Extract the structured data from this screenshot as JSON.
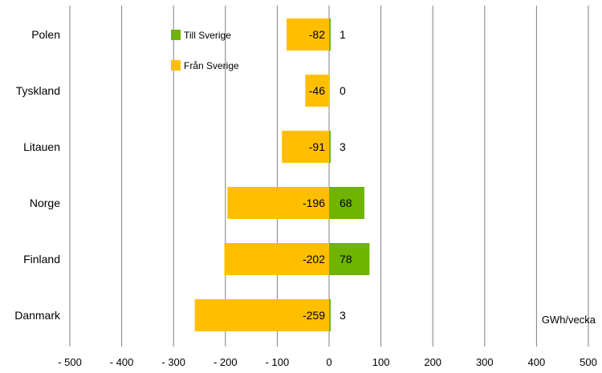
{
  "chart_data": {
    "type": "bar",
    "orientation": "horizontal",
    "categories": [
      "Polen",
      "Tyskland",
      "Litauen",
      "Norge",
      "Finland",
      "Danmark"
    ],
    "series": [
      {
        "name": "Till Sverige",
        "color": "#6eb400",
        "values": [
          1,
          0,
          3,
          68,
          78,
          3
        ]
      },
      {
        "name": "Från Sverige",
        "color": "#ffbf00",
        "values": [
          -82,
          -46,
          -91,
          -196,
          -202,
          -259
        ]
      }
    ],
    "xlim": [
      -500,
      500
    ],
    "xticks": [
      "- 500",
      "- 400",
      "- 300",
      "- 200",
      "- 100",
      "0",
      "100",
      "200",
      "300",
      "400",
      "500"
    ],
    "unit_label": "GWh/vecka",
    "grid": true,
    "legend": "top-left"
  }
}
